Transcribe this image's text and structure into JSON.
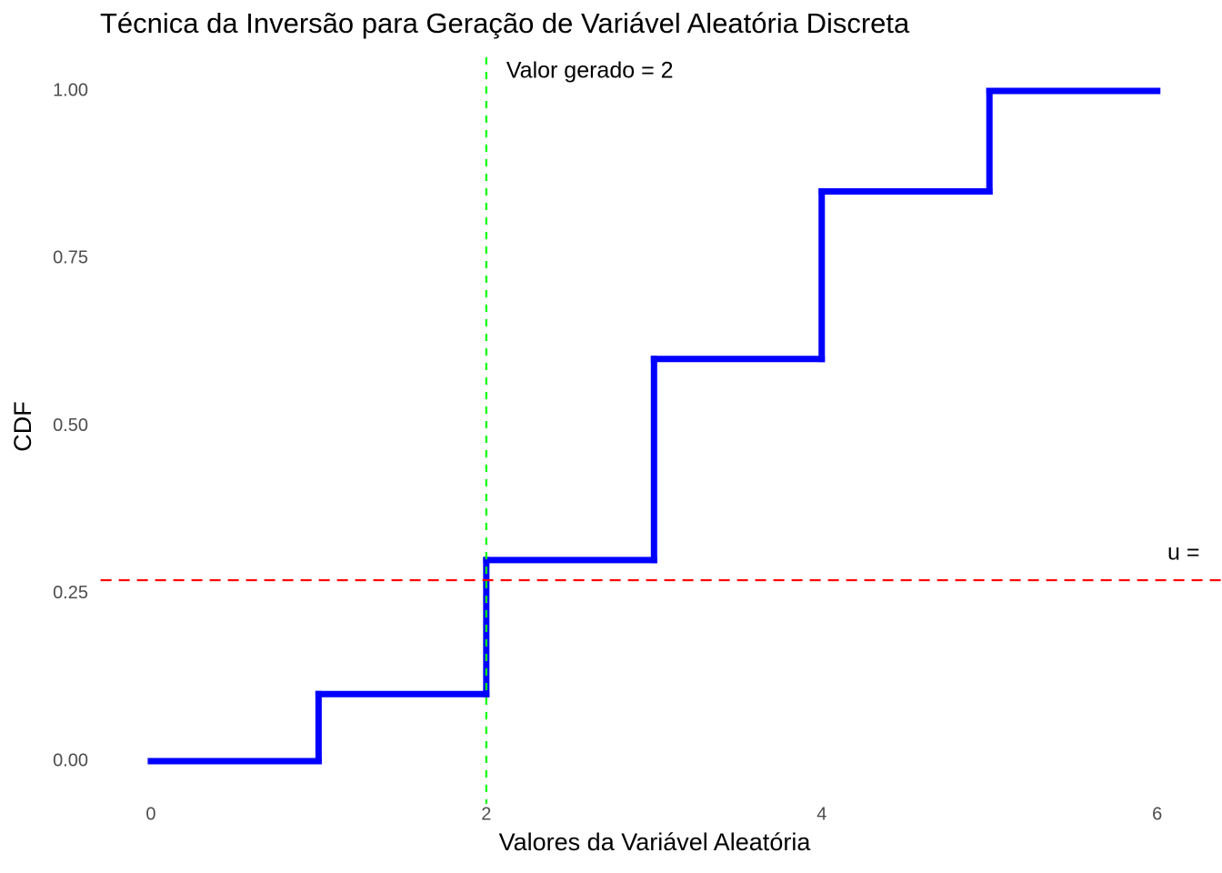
{
  "chart_data": {
    "type": "step",
    "title": "Técnica da Inversão para Geração de Variável Aleatória Discreta",
    "x_label": "Valores da Variável Aleatória",
    "y_label": "CDF",
    "x": [
      0,
      1,
      2,
      3,
      4,
      5,
      6
    ],
    "values": [
      0,
      0.1,
      0.3,
      0.6,
      0.85,
      1,
      1
    ],
    "color": "#0000ff",
    "xlim": [
      -0.3,
      6.3
    ],
    "ylim": [
      -0.05,
      1.05
    ],
    "xticks": [
      0,
      2,
      4,
      6
    ],
    "yticks": [
      {
        "value": 0,
        "label": "0.00"
      },
      {
        "value": 0.25,
        "label": "0.25"
      },
      {
        "value": 0.5,
        "label": "0.50"
      },
      {
        "value": 0.75,
        "label": "0.75"
      },
      {
        "value": 1,
        "label": "1.00"
      }
    ],
    "hline": {
      "value": 0.27,
      "color": "#ff0000",
      "label": "u ="
    },
    "vline": {
      "value": 2,
      "color": "#00ff00",
      "label": "Valor gerado = 2"
    }
  }
}
